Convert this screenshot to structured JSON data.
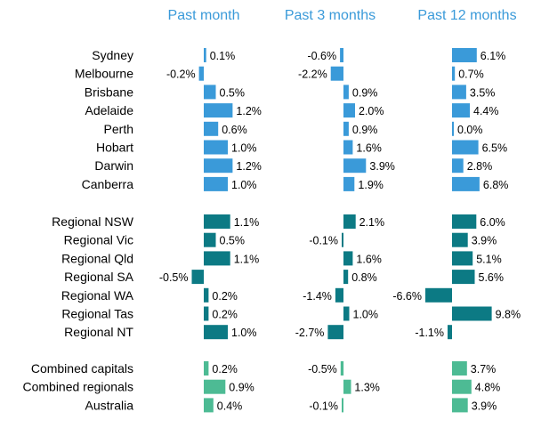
{
  "chart_data": {
    "type": "bar",
    "orientation": "horizontal",
    "columns": [
      "Past month",
      "Past 3 months",
      "Past 12 months"
    ],
    "groups": [
      {
        "color": "#3a9ad9",
        "rows": [
          {
            "label": "Sydney",
            "values": [
              0.1,
              -0.6,
              6.1
            ],
            "value_labels": [
              "0.1%",
              "-0.6%",
              "6.1%"
            ]
          },
          {
            "label": "Melbourne",
            "values": [
              -0.2,
              -2.2,
              0.7
            ],
            "value_labels": [
              "-0.2%",
              "-2.2%",
              "0.7%"
            ]
          },
          {
            "label": "Brisbane",
            "values": [
              0.5,
              0.9,
              3.5
            ],
            "value_labels": [
              "0.5%",
              "0.9%",
              "3.5%"
            ]
          },
          {
            "label": "Adelaide",
            "values": [
              1.2,
              2.0,
              4.4
            ],
            "value_labels": [
              "1.2%",
              "2.0%",
              "4.4%"
            ]
          },
          {
            "label": "Perth",
            "values": [
              0.6,
              0.9,
              0.0
            ],
            "value_labels": [
              "0.6%",
              "0.9%",
              "0.0%"
            ]
          },
          {
            "label": "Hobart",
            "values": [
              1.0,
              1.6,
              6.5
            ],
            "value_labels": [
              "1.0%",
              "1.6%",
              "6.5%"
            ]
          },
          {
            "label": "Darwin",
            "values": [
              1.2,
              3.9,
              2.8
            ],
            "value_labels": [
              "1.2%",
              "3.9%",
              "2.8%"
            ]
          },
          {
            "label": "Canberra",
            "values": [
              1.0,
              1.9,
              6.8
            ],
            "value_labels": [
              "1.0%",
              "1.9%",
              "6.8%"
            ]
          }
        ]
      },
      {
        "color": "#0c7a84",
        "rows": [
          {
            "label": "Regional NSW",
            "values": [
              1.1,
              2.1,
              6.0
            ],
            "value_labels": [
              "1.1%",
              "2.1%",
              "6.0%"
            ]
          },
          {
            "label": "Regional Vic",
            "values": [
              0.5,
              -0.1,
              3.9
            ],
            "value_labels": [
              "0.5%",
              "-0.1%",
              "3.9%"
            ]
          },
          {
            "label": "Regional Qld",
            "values": [
              1.1,
              1.6,
              5.1
            ],
            "value_labels": [
              "1.1%",
              "1.6%",
              "5.1%"
            ]
          },
          {
            "label": "Regional SA",
            "values": [
              -0.5,
              0.8,
              5.6
            ],
            "value_labels": [
              "-0.5%",
              "0.8%",
              "5.6%"
            ]
          },
          {
            "label": "Regional WA",
            "values": [
              0.2,
              -1.4,
              -6.6
            ],
            "value_labels": [
              "0.2%",
              "-1.4%",
              "-6.6%"
            ]
          },
          {
            "label": "Regional Tas",
            "values": [
              0.2,
              1.0,
              9.8
            ],
            "value_labels": [
              "0.2%",
              "1.0%",
              "9.8%"
            ]
          },
          {
            "label": "Regional NT",
            "values": [
              1.0,
              -2.7,
              -1.1
            ],
            "value_labels": [
              "1.0%",
              "-2.7%",
              "-1.1%"
            ]
          }
        ]
      },
      {
        "color": "#4dbb94",
        "rows": [
          {
            "label": "Combined capitals",
            "values": [
              0.2,
              -0.5,
              3.7
            ],
            "value_labels": [
              "0.2%",
              "-0.5%",
              "3.7%"
            ]
          },
          {
            "label": "Combined regionals",
            "values": [
              0.9,
              1.3,
              4.8
            ],
            "value_labels": [
              "0.9%",
              "1.3%",
              "4.8%"
            ]
          },
          {
            "label": "Australia",
            "values": [
              0.4,
              -0.1,
              3.9
            ],
            "value_labels": [
              "0.4%",
              "-0.1%",
              "3.9%"
            ]
          }
        ]
      }
    ],
    "title": "",
    "xlabel": "",
    "ylabel": "",
    "legend": "none",
    "grid": false
  }
}
